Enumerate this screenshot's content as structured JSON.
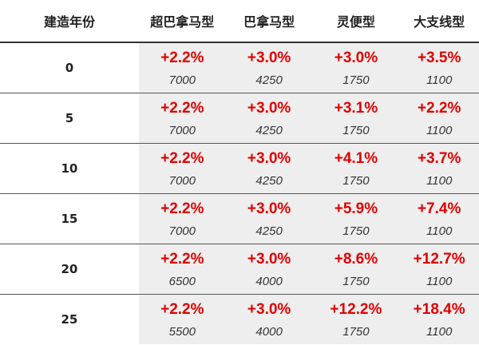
{
  "colors": {
    "accent": "#e10000",
    "cell_bg": "#eeeeee",
    "text": "#222222"
  },
  "table": {
    "headers": [
      "建造年份",
      "超巴拿马型",
      "巴拿马型",
      "灵便型",
      "大支线型"
    ],
    "rows": [
      {
        "year": "0",
        "cells": [
          {
            "pct": "+2.2%",
            "num": "7000"
          },
          {
            "pct": "+3.0%",
            "num": "4250"
          },
          {
            "pct": "+3.0%",
            "num": "1750"
          },
          {
            "pct": "+3.5%",
            "num": "1100"
          }
        ]
      },
      {
        "year": "5",
        "cells": [
          {
            "pct": "+2.2%",
            "num": "7000"
          },
          {
            "pct": "+3.0%",
            "num": "4250"
          },
          {
            "pct": "+3.1%",
            "num": "1750"
          },
          {
            "pct": "+2.2%",
            "num": "1100"
          }
        ]
      },
      {
        "year": "10",
        "cells": [
          {
            "pct": "+2.2%",
            "num": "7000"
          },
          {
            "pct": "+3.0%",
            "num": "4250"
          },
          {
            "pct": "+4.1%",
            "num": "1750"
          },
          {
            "pct": "+3.7%",
            "num": "1100"
          }
        ]
      },
      {
        "year": "15",
        "cells": [
          {
            "pct": "+2.2%",
            "num": "7000"
          },
          {
            "pct": "+3.0%",
            "num": "4250"
          },
          {
            "pct": "+5.9%",
            "num": "1750"
          },
          {
            "pct": "+7.4%",
            "num": "1100"
          }
        ]
      },
      {
        "year": "20",
        "cells": [
          {
            "pct": "+2.2%",
            "num": "6500"
          },
          {
            "pct": "+3.0%",
            "num": "4000"
          },
          {
            "pct": "+8.6%",
            "num": "1750"
          },
          {
            "pct": "+12.7%",
            "num": "1100"
          }
        ]
      },
      {
        "year": "25",
        "cells": [
          {
            "pct": "+2.2%",
            "num": "5500"
          },
          {
            "pct": "+3.0%",
            "num": "4000"
          },
          {
            "pct": "+12.2%",
            "num": "1750"
          },
          {
            "pct": "+18.4%",
            "num": "1100"
          }
        ]
      }
    ]
  }
}
